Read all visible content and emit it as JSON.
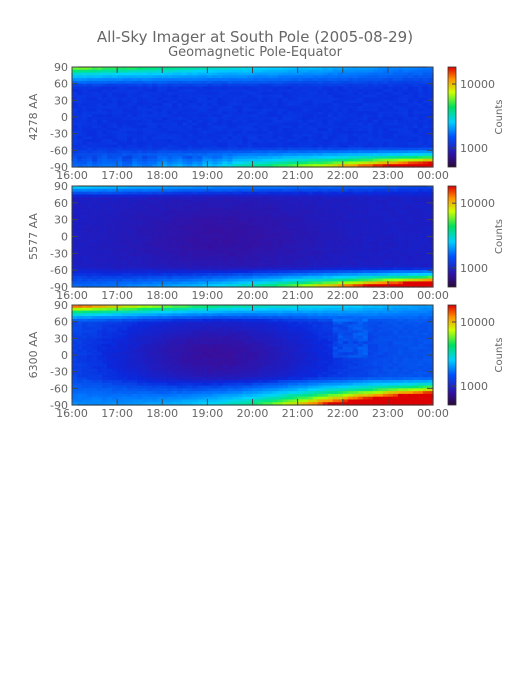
{
  "header": {
    "title": "All-Sky Imager at South Pole (2005-08-29)",
    "subtitle": "Geomagnetic Pole-Equator"
  },
  "chart_data": [
    {
      "type": "heatmap",
      "ylabel": "4278 AA",
      "x_ticks": [
        "16:00",
        "17:00",
        "18:00",
        "19:00",
        "20:00",
        "21:00",
        "22:00",
        "23:00",
        "00:00"
      ],
      "y_ticks": [
        "90",
        "60",
        "30",
        "0",
        "-30",
        "-60",
        "-90"
      ],
      "ylim": [
        -90,
        90
      ],
      "xlim": [
        "16:00",
        "00:00"
      ],
      "colorbar": {
        "label": "Counts",
        "ticks": [
          "10000",
          "1000"
        ],
        "scale": "log"
      }
    },
    {
      "type": "heatmap",
      "ylabel": "5577 AA",
      "x_ticks": [
        "16:00",
        "17:00",
        "18:00",
        "19:00",
        "20:00",
        "21:00",
        "22:00",
        "23:00",
        "00:00"
      ],
      "y_ticks": [
        "90",
        "60",
        "30",
        "0",
        "-30",
        "-60",
        "-90"
      ],
      "ylim": [
        -90,
        90
      ],
      "xlim": [
        "16:00",
        "00:00"
      ],
      "colorbar": {
        "label": "Counts",
        "ticks": [
          "10000",
          "1000"
        ],
        "scale": "log"
      }
    },
    {
      "type": "heatmap",
      "ylabel": "6300 AA",
      "x_ticks": [
        "16:00",
        "17:00",
        "18:00",
        "19:00",
        "20:00",
        "21:00",
        "22:00",
        "23:00",
        "00:00"
      ],
      "y_ticks": [
        "90",
        "60",
        "30",
        "0",
        "-30",
        "-60",
        "-90"
      ],
      "ylim": [
        -90,
        90
      ],
      "xlim": [
        "16:00",
        "00:00"
      ],
      "colorbar": {
        "label": "Counts",
        "ticks": [
          "10000",
          "1000"
        ],
        "scale": "log"
      }
    }
  ]
}
